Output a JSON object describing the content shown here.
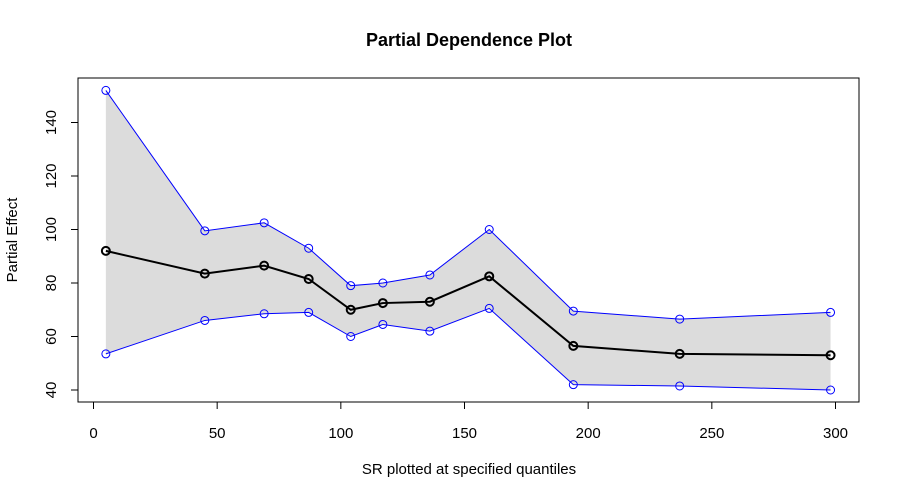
{
  "chart_data": {
    "type": "line",
    "title": "Partial Dependence Plot",
    "xlabel": "SR plotted at specified quantiles",
    "ylabel": "Partial Effect",
    "xlim": [
      0,
      300
    ],
    "ylim": [
      40,
      150
    ],
    "x_ticks": [
      0,
      50,
      100,
      150,
      200,
      250,
      300
    ],
    "y_ticks": [
      40,
      60,
      80,
      100,
      120,
      140
    ],
    "x": [
      5,
      45,
      69,
      87,
      104,
      117,
      136,
      160,
      194,
      237,
      298
    ],
    "series": [
      {
        "role": "estimate",
        "values": [
          92,
          83.5,
          86.5,
          81.5,
          70,
          72.5,
          73,
          82.5,
          56.5,
          53.5,
          53
        ],
        "color": "#000000"
      },
      {
        "role": "upper",
        "values": [
          152,
          99.5,
          102.5,
          93,
          79,
          80,
          83,
          100,
          69.5,
          66.5,
          69
        ],
        "color": "#0000ff"
      },
      {
        "role": "lower",
        "values": [
          53.5,
          66,
          68.5,
          69,
          60,
          64.5,
          62,
          70.5,
          42,
          41.5,
          40
        ],
        "color": "#0000ff"
      }
    ],
    "band_color": "#dcdcdc",
    "grid": false,
    "legend": "none"
  }
}
